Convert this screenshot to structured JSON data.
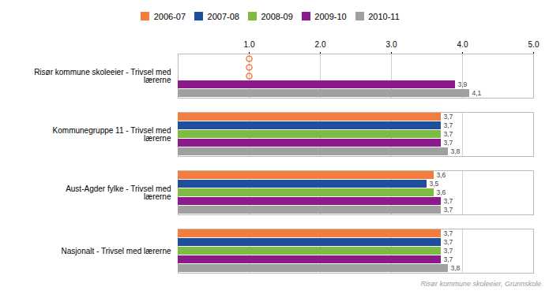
{
  "chart_data": {
    "type": "bar",
    "orientation": "horizontal",
    "categories": [
      "Risør kommune skoleeier - Trivsel med\n lærerne",
      "Kommunegruppe 11 - Trivsel med\n lærerne",
      "Aust-Agder fylke - Trivsel med\n lærerne",
      "Nasjonalt - Trivsel med lærerne"
    ],
    "series": [
      {
        "name": "2006-07",
        "color": "#f47c3c",
        "values": [
          null,
          3.7,
          3.6,
          3.7
        ],
        "value_labels": [
          null,
          "3,7",
          "3,6",
          "3,7"
        ]
      },
      {
        "name": "2007-08",
        "color": "#1f4e9c",
        "values": [
          null,
          3.7,
          3.5,
          3.7
        ],
        "value_labels": [
          null,
          "3,7",
          "3,5",
          "3,7"
        ]
      },
      {
        "name": "2008-09",
        "color": "#7dbb42",
        "values": [
          null,
          3.7,
          3.6,
          3.7
        ],
        "value_labels": [
          null,
          "3,7",
          "3,6",
          "3,7"
        ]
      },
      {
        "name": "2009-10",
        "color": "#8b1a8b",
        "values": [
          3.9,
          3.7,
          3.7,
          3.7
        ],
        "value_labels": [
          "3,9",
          "3,7",
          "3,7",
          "3,7"
        ]
      },
      {
        "name": "2010-11",
        "color": "#a0a0a0",
        "values": [
          4.1,
          3.8,
          3.7,
          3.8
        ],
        "value_labels": [
          "4,1",
          "3,8",
          "3,7",
          "3,8"
        ]
      }
    ],
    "below_threshold": {
      "x": 1,
      "marker": "circle",
      "color": "#f47c3c"
    },
    "xlim": [
      0,
      5
    ],
    "xticks": [
      1,
      2,
      3,
      4,
      5
    ],
    "grid": true,
    "legend": "top",
    "data_labels": true,
    "footnote": "Risør kommune skoleeier, Grunnskole"
  }
}
